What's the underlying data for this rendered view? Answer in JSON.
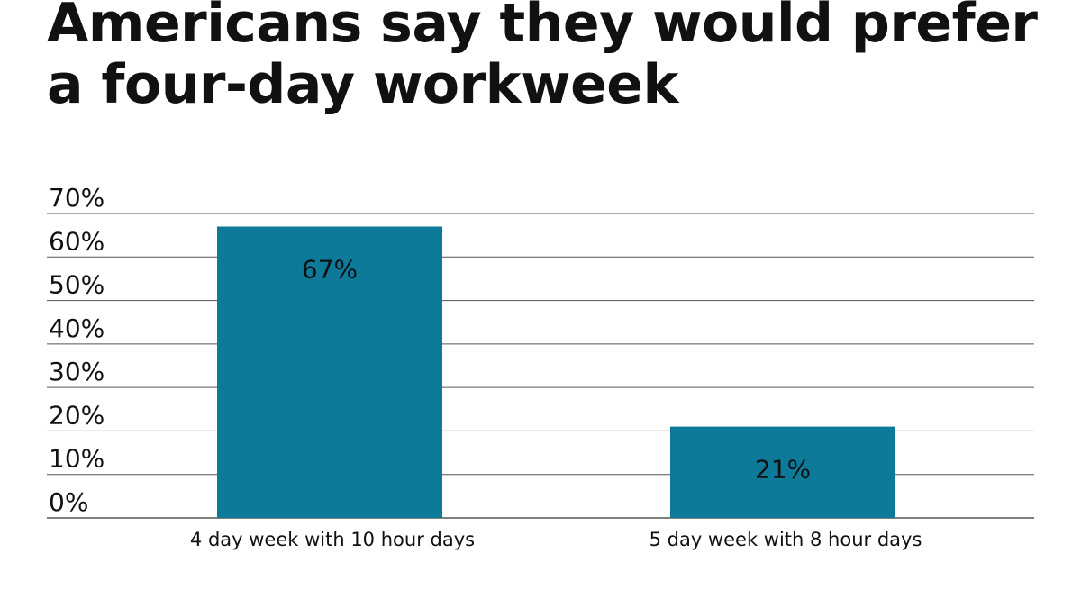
{
  "chart_data": {
    "type": "bar",
    "title": "Americans say they would prefer a four-day workweek",
    "categories": [
      "4 day week with 10 hour days",
      "5 day week with 8 hour days"
    ],
    "values": [
      67,
      21
    ],
    "data_labels": [
      "67%",
      "21%"
    ],
    "ylim": [
      0,
      70
    ],
    "yticks": [
      0,
      10,
      20,
      30,
      40,
      50,
      60,
      70
    ],
    "ytick_labels": [
      "0%",
      "10%",
      "20%",
      "30%",
      "40%",
      "50%",
      "60%",
      "70%"
    ],
    "grid": true,
    "bar_color": "#0e7a99",
    "grid_color": "#555555"
  }
}
